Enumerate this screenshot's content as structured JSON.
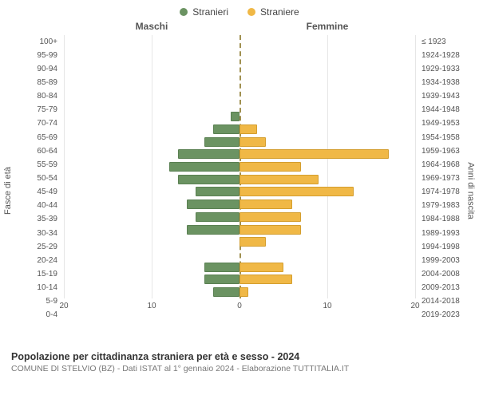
{
  "chart": {
    "type": "population-pyramid",
    "legend": [
      {
        "label": "Stranieri",
        "color": "#6b9362"
      },
      {
        "label": "Straniere",
        "color": "#f0b846"
      }
    ],
    "header_left": "Maschi",
    "header_right": "Femmine",
    "y_title_left": "Fasce di età",
    "y_title_right": "Anni di nascita",
    "age_labels": [
      "100+",
      "95-99",
      "90-94",
      "85-89",
      "80-84",
      "75-79",
      "70-74",
      "65-69",
      "60-64",
      "55-59",
      "50-54",
      "45-49",
      "40-44",
      "35-39",
      "30-34",
      "25-29",
      "20-24",
      "15-19",
      "10-14",
      "5-9",
      "0-4"
    ],
    "birth_labels": [
      "≤ 1923",
      "1924-1928",
      "1929-1933",
      "1934-1938",
      "1939-1943",
      "1944-1948",
      "1949-1953",
      "1954-1958",
      "1959-1963",
      "1964-1968",
      "1969-1973",
      "1974-1978",
      "1979-1983",
      "1984-1988",
      "1989-1993",
      "1994-1998",
      "1999-2003",
      "2004-2008",
      "2009-2013",
      "2014-2018",
      "2019-2023"
    ],
    "male_values": [
      0,
      0,
      0,
      0,
      0,
      0,
      1,
      3,
      4,
      7,
      8,
      7,
      5,
      6,
      5,
      6,
      0,
      0,
      4,
      4,
      3
    ],
    "female_values": [
      0,
      0,
      0,
      0,
      0,
      0,
      0,
      2,
      3,
      17,
      7,
      9,
      13,
      6,
      7,
      7,
      3,
      0,
      5,
      6,
      1
    ],
    "male_color": "#6b9362",
    "female_color": "#f0b846",
    "male_border": "#5a8052",
    "female_border": "#d49e2e",
    "x_ticks": [
      20,
      10,
      0,
      10,
      20
    ],
    "x_max": 20,
    "grid_color": "#e6e6e6",
    "center_line_color": "#a09050",
    "background_color": "#ffffff",
    "tick_fontsize": 10,
    "label_fontsize": 11
  },
  "footer": {
    "title": "Popolazione per cittadinanza straniera per età e sesso - 2024",
    "subtitle": "COMUNE DI STELVIO (BZ) - Dati ISTAT al 1° gennaio 2024 - Elaborazione TUTTITALIA.IT"
  }
}
